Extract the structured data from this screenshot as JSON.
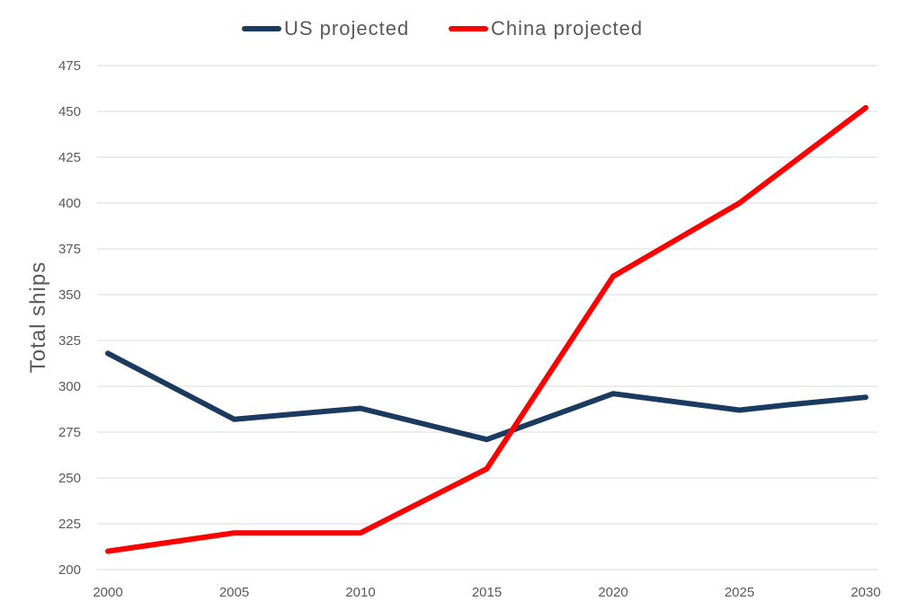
{
  "chart_data": {
    "type": "line",
    "title": "",
    "xlabel": "",
    "ylabel": "Total ships",
    "x": [
      2000,
      2005,
      2010,
      2015,
      2020,
      2025,
      2030
    ],
    "x_ticks": [
      "2000",
      "2005",
      "2010",
      "2015",
      "2020",
      "2025",
      "2030"
    ],
    "ylim": [
      200,
      475
    ],
    "y_ticks": [
      "200",
      "225",
      "250",
      "275",
      "300",
      "325",
      "350",
      "375",
      "400",
      "425",
      "450",
      "475"
    ],
    "grid": true,
    "legend_position": "top-center",
    "series": [
      {
        "name": "US projected",
        "color": "#1a3a5f",
        "points": [
          [
            2000,
            318
          ],
          [
            2005,
            282
          ],
          [
            2010,
            288
          ],
          [
            2015,
            271
          ],
          [
            2020,
            296
          ],
          [
            2025,
            287
          ],
          [
            2027,
            290
          ],
          [
            2030,
            294
          ]
        ]
      },
      {
        "name": "China projected",
        "color": "#ff0000",
        "points": [
          [
            2000,
            210
          ],
          [
            2003,
            216
          ],
          [
            2005,
            220
          ],
          [
            2010,
            220
          ],
          [
            2015,
            255
          ],
          [
            2020,
            360
          ],
          [
            2025,
            400
          ],
          [
            2030,
            452
          ]
        ]
      }
    ]
  }
}
